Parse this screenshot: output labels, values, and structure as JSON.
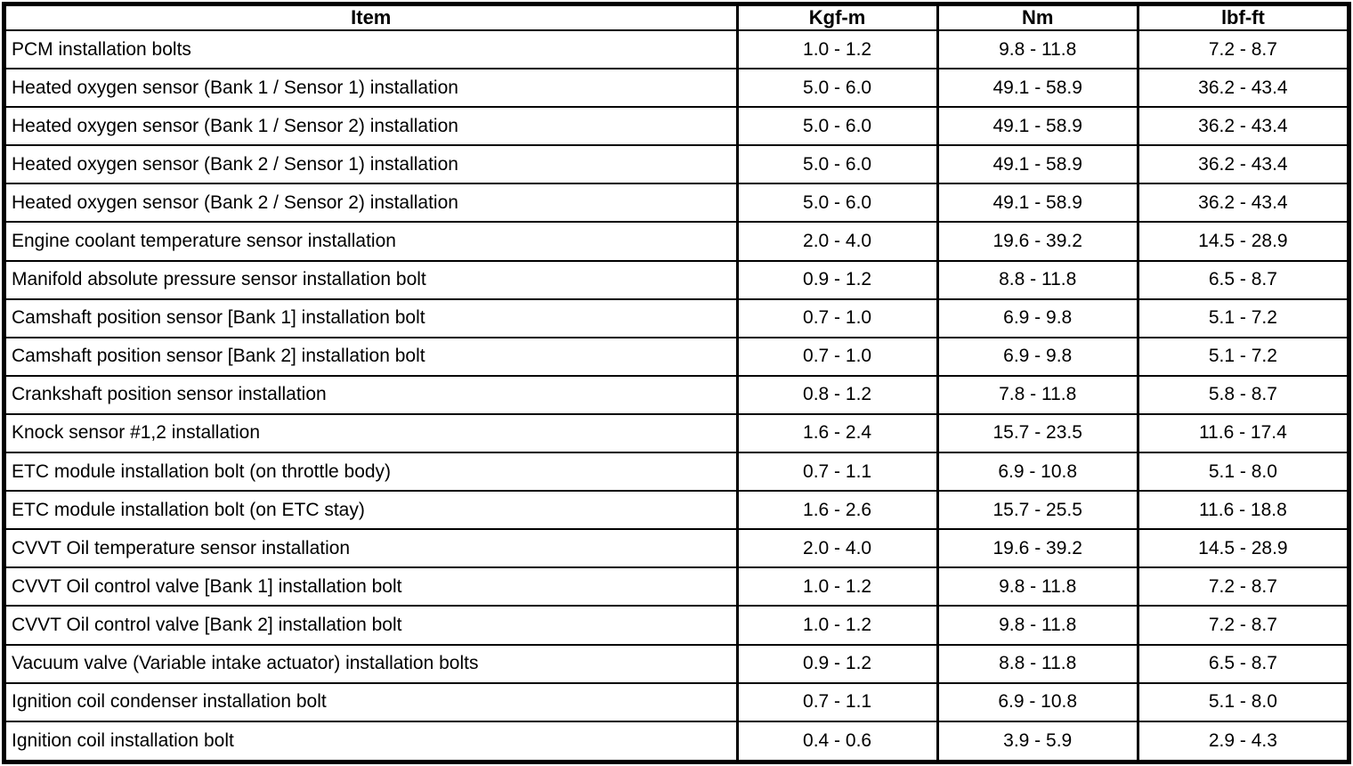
{
  "table": {
    "columns": [
      "Item",
      "Kgf-m",
      "Nm",
      "lbf-ft"
    ],
    "rows": [
      {
        "item": "PCM installation bolts",
        "kgf_m": "1.0 - 1.2",
        "nm": "9.8 - 11.8",
        "lbf_ft": "7.2 - 8.7"
      },
      {
        "item": "Heated oxygen sensor (Bank 1 / Sensor 1) installation",
        "kgf_m": "5.0 - 6.0",
        "nm": "49.1 - 58.9",
        "lbf_ft": "36.2 - 43.4"
      },
      {
        "item": "Heated oxygen sensor (Bank 1 / Sensor 2) installation",
        "kgf_m": "5.0 - 6.0",
        "nm": "49.1 - 58.9",
        "lbf_ft": "36.2 - 43.4"
      },
      {
        "item": "Heated oxygen sensor (Bank 2 / Sensor 1) installation",
        "kgf_m": "5.0 - 6.0",
        "nm": "49.1 - 58.9",
        "lbf_ft": "36.2 - 43.4"
      },
      {
        "item": "Heated oxygen sensor (Bank 2 / Sensor 2) installation",
        "kgf_m": "5.0 - 6.0",
        "nm": "49.1 - 58.9",
        "lbf_ft": "36.2 - 43.4"
      },
      {
        "item": "Engine coolant temperature sensor installation",
        "kgf_m": "2.0 - 4.0",
        "nm": "19.6 - 39.2",
        "lbf_ft": "14.5 - 28.9"
      },
      {
        "item": "Manifold absolute pressure sensor installation bolt",
        "kgf_m": "0.9 - 1.2",
        "nm": "8.8 - 11.8",
        "lbf_ft": "6.5 - 8.7"
      },
      {
        "item": "Camshaft position sensor [Bank 1] installation bolt",
        "kgf_m": "0.7 - 1.0",
        "nm": "6.9 - 9.8",
        "lbf_ft": "5.1 - 7.2"
      },
      {
        "item": "Camshaft position sensor [Bank 2] installation bolt",
        "kgf_m": "0.7 - 1.0",
        "nm": "6.9 - 9.8",
        "lbf_ft": "5.1 - 7.2"
      },
      {
        "item": "Crankshaft position sensor installation",
        "kgf_m": "0.8 - 1.2",
        "nm": "7.8 - 11.8",
        "lbf_ft": "5.8 - 8.7"
      },
      {
        "item": "Knock sensor #1,2 installation",
        "kgf_m": "1.6 - 2.4",
        "nm": "15.7 - 23.5",
        "lbf_ft": "11.6 - 17.4"
      },
      {
        "item": "ETC module installation bolt (on throttle body)",
        "kgf_m": "0.7 - 1.1",
        "nm": "6.9 - 10.8",
        "lbf_ft": "5.1 - 8.0"
      },
      {
        "item": "ETC module installation bolt (on ETC stay)",
        "kgf_m": "1.6 - 2.6",
        "nm": "15.7 - 25.5",
        "lbf_ft": "11.6 - 18.8"
      },
      {
        "item": "CVVT Oil temperature sensor installation",
        "kgf_m": "2.0 - 4.0",
        "nm": "19.6 - 39.2",
        "lbf_ft": "14.5 - 28.9"
      },
      {
        "item": "CVVT Oil control valve [Bank 1] installation bolt",
        "kgf_m": "1.0 - 1.2",
        "nm": "9.8 - 11.8",
        "lbf_ft": "7.2 - 8.7"
      },
      {
        "item": "CVVT Oil control valve [Bank 2] installation bolt",
        "kgf_m": "1.0 - 1.2",
        "nm": "9.8 - 11.8",
        "lbf_ft": "7.2 - 8.7"
      },
      {
        "item": "Vacuum valve (Variable intake actuator) installation bolts",
        "kgf_m": "0.9 - 1.2",
        "nm": "8.8 - 11.8",
        "lbf_ft": "6.5 - 8.7"
      },
      {
        "item": "Ignition coil condenser installation bolt",
        "kgf_m": "0.7 - 1.1",
        "nm": "6.9 - 10.8",
        "lbf_ft": "5.1 - 8.0"
      },
      {
        "item": "Ignition coil installation bolt",
        "kgf_m": "0.4 - 0.6",
        "nm": "3.9 - 5.9",
        "lbf_ft": "2.9 - 4.3"
      }
    ]
  },
  "colors": {
    "border": "#000000",
    "background": "#ffffff",
    "text": "#000000"
  }
}
